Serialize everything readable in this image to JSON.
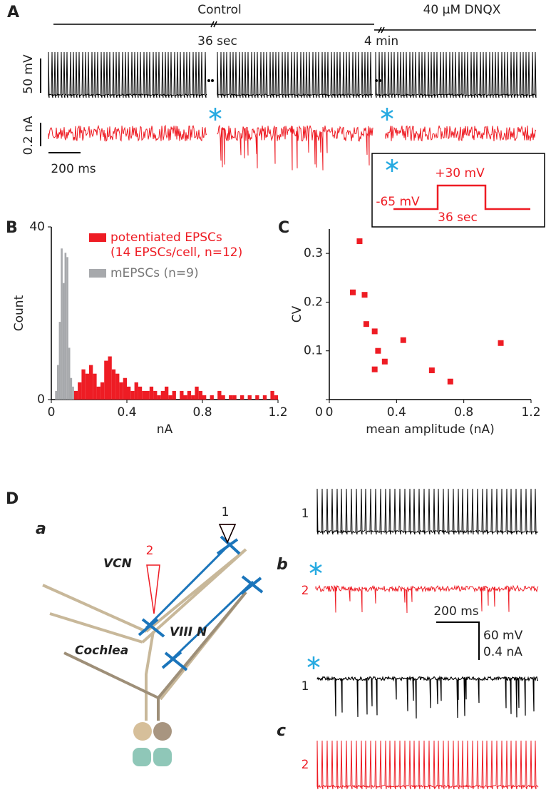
{
  "panels": {
    "A": {
      "letter": "A",
      "control": "Control",
      "dnqx": "40 μM DNQX",
      "gap1": "36 sec",
      "gap2": "4 min",
      "vscale": "50 mV",
      "iscale": "0.2 nA",
      "tscale": "200 ms",
      "inset_hold": "-65 mV",
      "inset_step": "+30 mV",
      "inset_time": "36 sec"
    },
    "B": {
      "letter": "B",
      "legend_note": "(14 EPSCs/cell, n=12)"
    },
    "C": {
      "letter": "C"
    },
    "D": {
      "letter": "D",
      "a": {
        "letter": "a",
        "vcn": "VCN",
        "pipette2": "2",
        "pipette1": "1",
        "nerve": "VIII N",
        "cochlea": "Cochlea"
      },
      "b": {
        "letter": "b",
        "trace1": "1",
        "trace2": "2",
        "tscale": "200 ms",
        "vscale": "60 mV",
        "iscale": "0.4 nA"
      },
      "c": {
        "letter": "c",
        "trace1": "1",
        "trace2": "2"
      }
    }
  },
  "chart_data": [
    {
      "type": "histogram",
      "x_label": "nA",
      "y_label": "Count",
      "xlim": [
        0,
        1.2
      ],
      "ylim": [
        0,
        40
      ],
      "xticks": [
        0,
        0.4,
        0.8,
        1.2
      ],
      "yticks": [
        0,
        40
      ],
      "series": [
        {
          "name": "potentiated EPSCs",
          "color": "#ee1c24",
          "bins": [
            0.12,
            0.14,
            0.16,
            0.18,
            0.2,
            0.22,
            0.24,
            0.26,
            0.28,
            0.3,
            0.32,
            0.34,
            0.36,
            0.38,
            0.4,
            0.42,
            0.44,
            0.46,
            0.48,
            0.5,
            0.52,
            0.54,
            0.56,
            0.58,
            0.6,
            0.62,
            0.64,
            0.66,
            0.68,
            0.7,
            0.72,
            0.74,
            0.76,
            0.78,
            0.8,
            0.82,
            0.84,
            0.86,
            0.88,
            0.9,
            0.92,
            0.94,
            0.96,
            0.98,
            1,
            1.02,
            1.04,
            1.06,
            1.08,
            1.1,
            1.12,
            1.14,
            1.16,
            1.18,
            1.2
          ],
          "values": [
            2,
            4,
            7,
            6,
            8,
            6,
            3,
            4,
            9,
            10,
            7,
            6,
            4,
            5,
            3,
            2,
            4,
            3,
            2,
            2,
            3,
            2,
            1,
            2,
            3,
            1,
            2,
            0,
            2,
            1,
            2,
            1,
            3,
            2,
            1,
            0,
            1,
            0,
            2,
            1,
            0,
            1,
            1,
            0,
            1,
            0,
            1,
            0,
            1,
            0,
            1,
            0,
            2,
            1
          ]
        },
        {
          "name": "mEPSCs (n=9)",
          "color": "#a7a9ac",
          "bins": [
            0.02,
            0.03,
            0.04,
            0.05,
            0.06,
            0.07,
            0.08,
            0.09,
            0.1,
            0.11,
            0.12
          ],
          "values": [
            2,
            8,
            18,
            35,
            27,
            34,
            33,
            12,
            5,
            3
          ]
        }
      ]
    },
    {
      "type": "scatter",
      "x_label": "mean amplitude (nA)",
      "y_label": "CV",
      "xlim": [
        0,
        1.2
      ],
      "ylim": [
        0,
        0.35
      ],
      "xticks": [
        0,
        0.4,
        0.8,
        1.2
      ],
      "yticks": [
        0,
        0.1,
        0.2,
        0.3
      ],
      "color": "#ee1c24",
      "x": [
        0.14,
        0.18,
        0.21,
        0.22,
        0.27,
        0.29,
        0.27,
        0.33,
        0.44,
        0.61,
        0.72,
        1.02
      ],
      "values": [
        0.22,
        0.325,
        0.215,
        0.155,
        0.14,
        0.1,
        0.062,
        0.078,
        0.122,
        0.06,
        0.037,
        0.116
      ]
    }
  ]
}
